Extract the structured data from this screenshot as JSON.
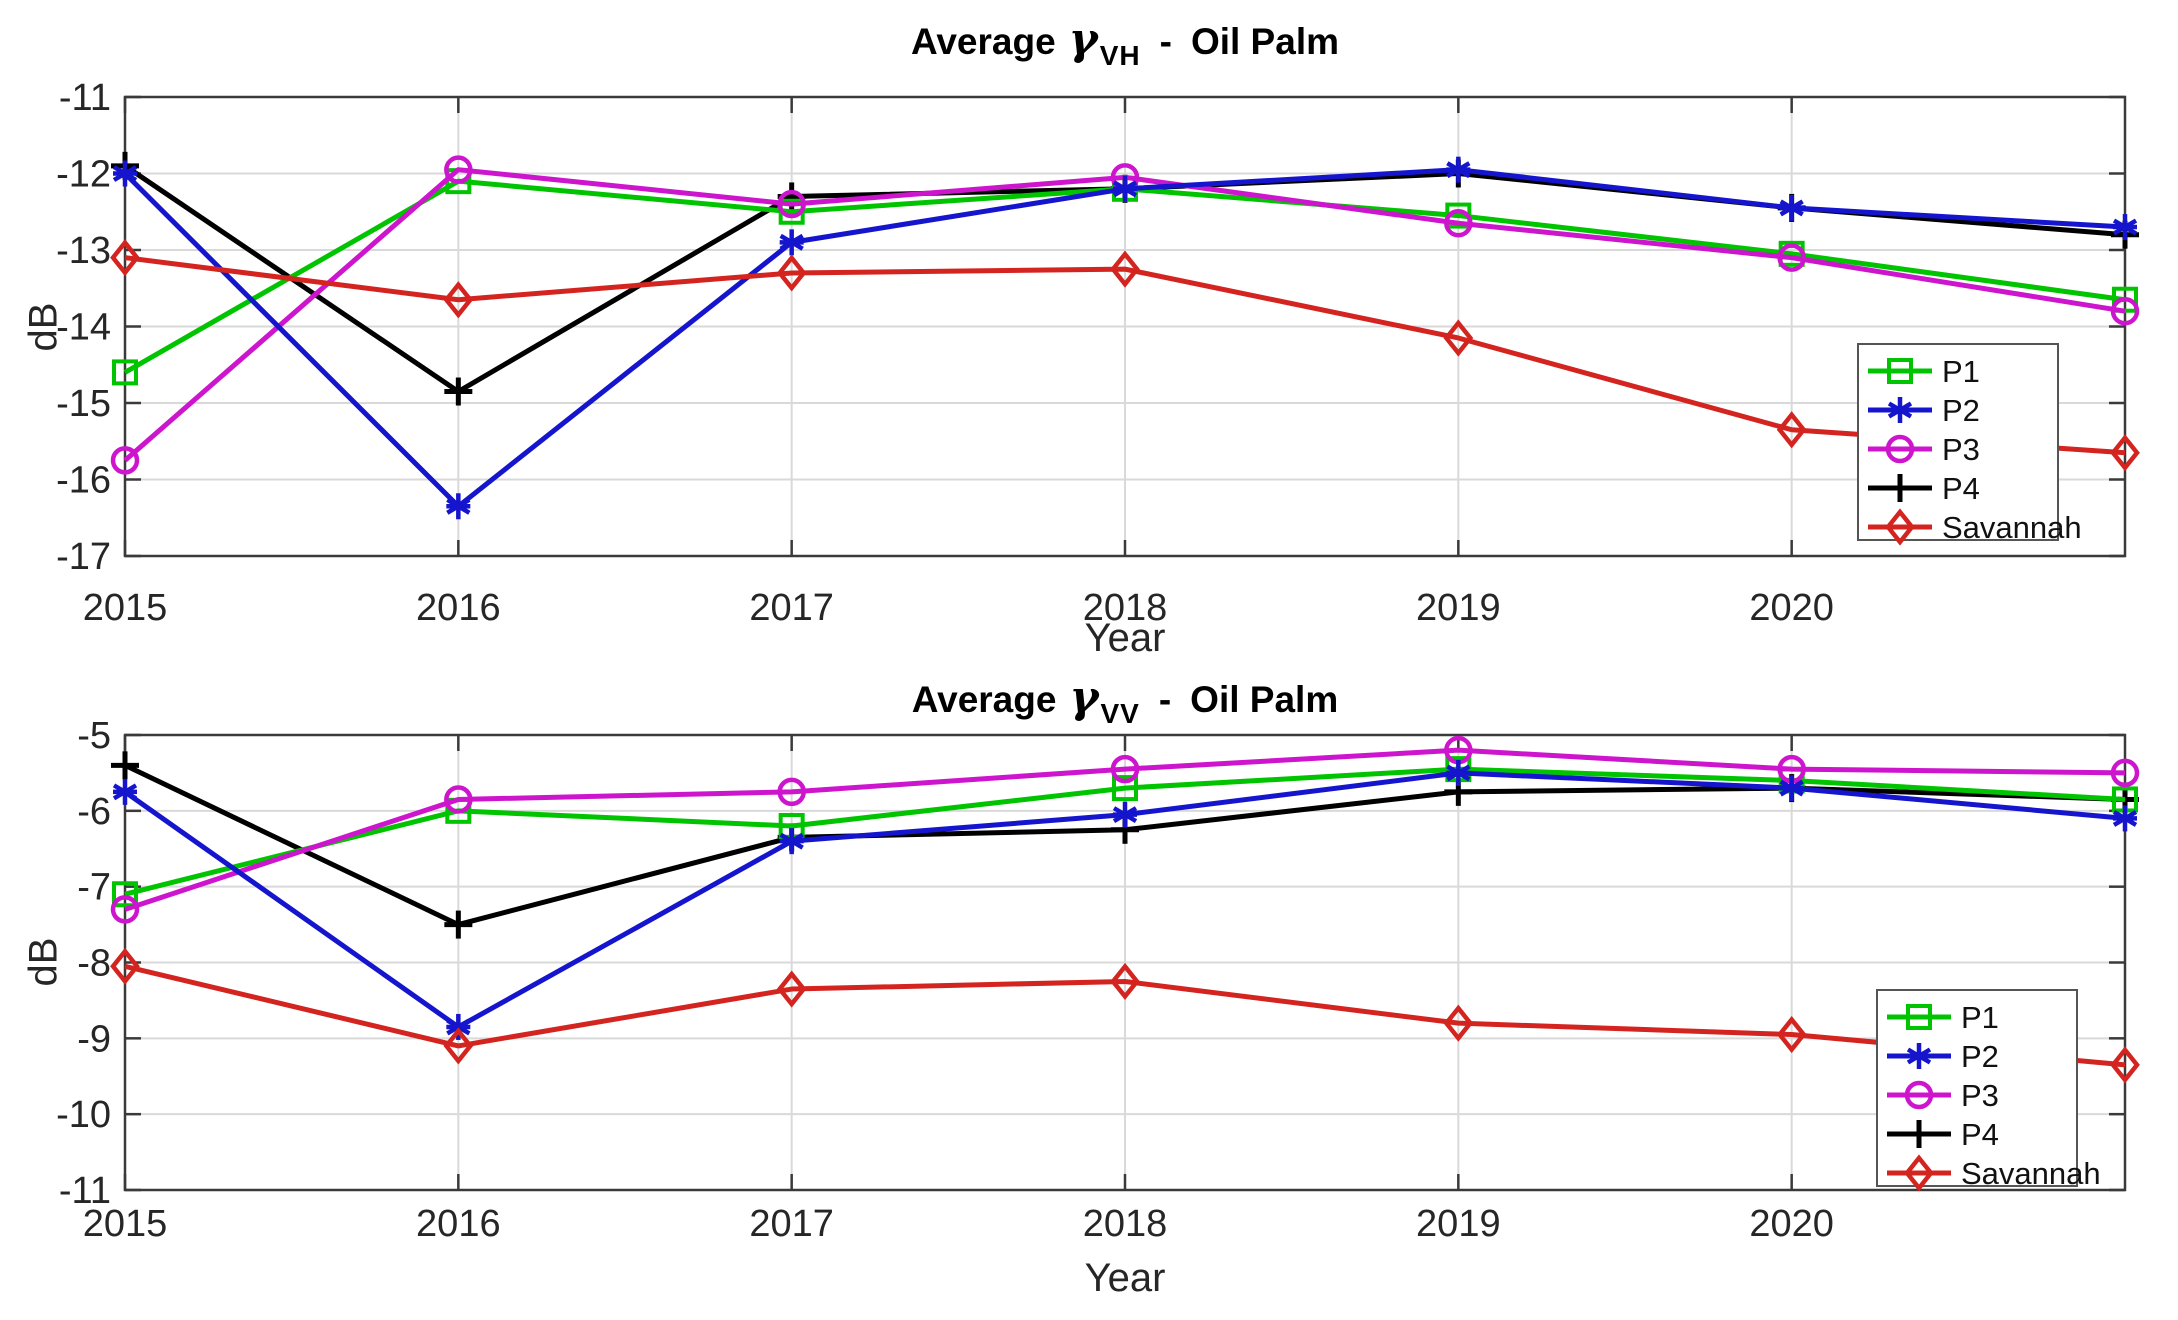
{
  "page": {
    "background": "#ffffff"
  },
  "styles": {
    "axis_color": "#3a3a3a",
    "grid_color": "#d9d9d9",
    "tick_label_color": "#262626",
    "legend_text_color": "#111111",
    "legend_border_color": "#555555"
  },
  "legend": {
    "entries": [
      "P1",
      "P2",
      "P3",
      "P4",
      "Savannah"
    ]
  },
  "charts": [
    {
      "key": "vh",
      "title": {
        "prefix": "Average",
        "gamma": "γ",
        "subscript": "VH",
        "dash": "-",
        "suffix": "Oil Palm"
      },
      "xlabel": "Year",
      "ylabel": "dB"
    },
    {
      "key": "vv",
      "title": {
        "prefix": "Average",
        "gamma": "γ",
        "subscript": "VV",
        "dash": "-",
        "suffix": "Oil Palm"
      },
      "xlabel": "Year",
      "ylabel": "dB"
    }
  ],
  "chart_data": [
    {
      "type": "line",
      "title": "Average γ_VH - Oil Palm",
      "xlabel": "Year",
      "ylabel": "dB",
      "x": [
        2015,
        2016,
        2017,
        2018,
        2019,
        2020,
        2021
      ],
      "xticks_labeled": [
        2015,
        2016,
        2017,
        2018,
        2019,
        2020
      ],
      "xlim": [
        2015,
        2021
      ],
      "ylim": [
        -17,
        -11
      ],
      "yticks": [
        -11,
        -12,
        -13,
        -14,
        -15,
        -16,
        -17
      ],
      "grid": true,
      "legend_position": "inside-lower-right",
      "series": [
        {
          "name": "P1",
          "color": "#00c400",
          "marker": "square",
          "values": [
            -14.6,
            -12.1,
            -12.5,
            -12.2,
            -12.55,
            -13.05,
            -13.65
          ]
        },
        {
          "name": "P2",
          "color": "#1515cd",
          "marker": "asterisk",
          "values": [
            -12.0,
            -16.35,
            -12.9,
            -12.2,
            -11.95,
            -12.45,
            -12.7
          ]
        },
        {
          "name": "P3",
          "color": "#cd15cd",
          "marker": "circle",
          "values": [
            -15.75,
            -11.95,
            -12.4,
            -12.05,
            -12.65,
            -13.1,
            -13.8
          ]
        },
        {
          "name": "P4",
          "color": "#000000",
          "marker": "plus",
          "values": [
            -11.9,
            -14.85,
            -12.3,
            -12.2,
            -12.0,
            -12.45,
            -12.8
          ]
        },
        {
          "name": "Savannah",
          "color": "#d42420",
          "marker": "diamond",
          "values": [
            -13.1,
            -13.65,
            -13.3,
            -13.25,
            -14.15,
            -15.35,
            -15.65
          ]
        }
      ]
    },
    {
      "type": "line",
      "title": "Average γ_VV - Oil Palm",
      "xlabel": "Year",
      "ylabel": "dB",
      "x": [
        2015,
        2016,
        2017,
        2018,
        2019,
        2020,
        2021
      ],
      "xticks_labeled": [
        2015,
        2016,
        2017,
        2018,
        2019,
        2020
      ],
      "xlim": [
        2015,
        2021
      ],
      "ylim": [
        -11,
        -5
      ],
      "yticks": [
        -5,
        -6,
        -7,
        -8,
        -9,
        -10,
        -11
      ],
      "grid": true,
      "legend_position": "inside-lower-right",
      "series": [
        {
          "name": "P1",
          "color": "#00c400",
          "marker": "square",
          "values": [
            -7.1,
            -6.0,
            -6.2,
            -5.7,
            -5.45,
            -5.6,
            -5.85
          ]
        },
        {
          "name": "P2",
          "color": "#1515cd",
          "marker": "asterisk",
          "values": [
            -5.75,
            -8.85,
            -6.4,
            -6.05,
            -5.5,
            -5.7,
            -6.1
          ]
        },
        {
          "name": "P3",
          "color": "#cd15cd",
          "marker": "circle",
          "values": [
            -7.3,
            -5.85,
            -5.75,
            -5.45,
            -5.2,
            -5.45,
            -5.5
          ]
        },
        {
          "name": "P4",
          "color": "#000000",
          "marker": "plus",
          "values": [
            -5.4,
            -7.5,
            -6.35,
            -6.25,
            -5.75,
            -5.7,
            -5.85
          ]
        },
        {
          "name": "Savannah",
          "color": "#d42420",
          "marker": "diamond",
          "values": [
            -8.05,
            -9.1,
            -8.35,
            -8.25,
            -8.8,
            -8.95,
            -9.35
          ]
        }
      ]
    }
  ]
}
